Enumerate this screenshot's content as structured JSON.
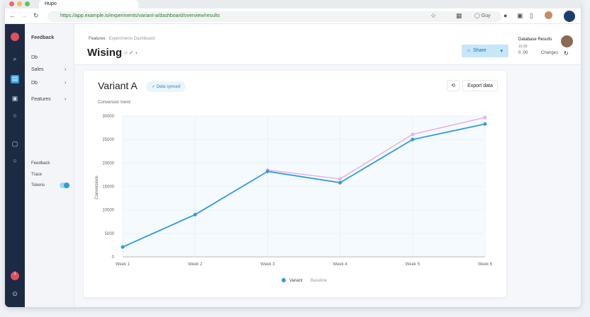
{
  "browser": {
    "tab_title": "Hupo",
    "url": "https://app.example.io/experiments/variant-a/dashboard/overview/results",
    "profile_label": "Guy"
  },
  "sidebar": {
    "title": "Feedback",
    "items": [
      {
        "label": "Db"
      },
      {
        "label": "Sales"
      },
      {
        "label": "Db"
      },
      {
        "label": "Features"
      }
    ],
    "settings": [
      {
        "label": "Feedback"
      },
      {
        "label": "Trace"
      },
      {
        "label": "Tokens"
      }
    ],
    "toggle_on": true,
    "notification_count": "1"
  },
  "header": {
    "breadcrumb_root": "Features",
    "breadcrumb_current": "Experiments Dashboard",
    "title": "Wising",
    "primary_button": "Share",
    "user_name": "Database Results",
    "user_sub": "10:30",
    "meta_left": "0 .00",
    "meta_right": "Changes"
  },
  "card": {
    "title": "Variant A",
    "badge": "Data synced",
    "action_button": "Export data",
    "accent": "#2d9cdb",
    "secondary": "#e6b3e6"
  },
  "chart_data": {
    "type": "line",
    "title": "Conversion trend",
    "ylabel": "Conversions",
    "categories": [
      "Week 1",
      "Week 2",
      "Week 3",
      "Week 4",
      "Week 5",
      "Week 6"
    ],
    "yticks": [
      0,
      5000,
      10000,
      15000,
      20000,
      25000,
      30000
    ],
    "ylim": [
      0,
      30000
    ],
    "grid": true,
    "legend": "bottom",
    "series": [
      {
        "name": "Variant",
        "color": "#2d9cdb",
        "values": [
          2100,
          9000,
          18200,
          15800,
          25000,
          28300
        ]
      },
      {
        "name": "Baseline",
        "color": "#e6b3e6",
        "values": [
          null,
          null,
          18500,
          16600,
          26100,
          29700
        ]
      }
    ]
  }
}
